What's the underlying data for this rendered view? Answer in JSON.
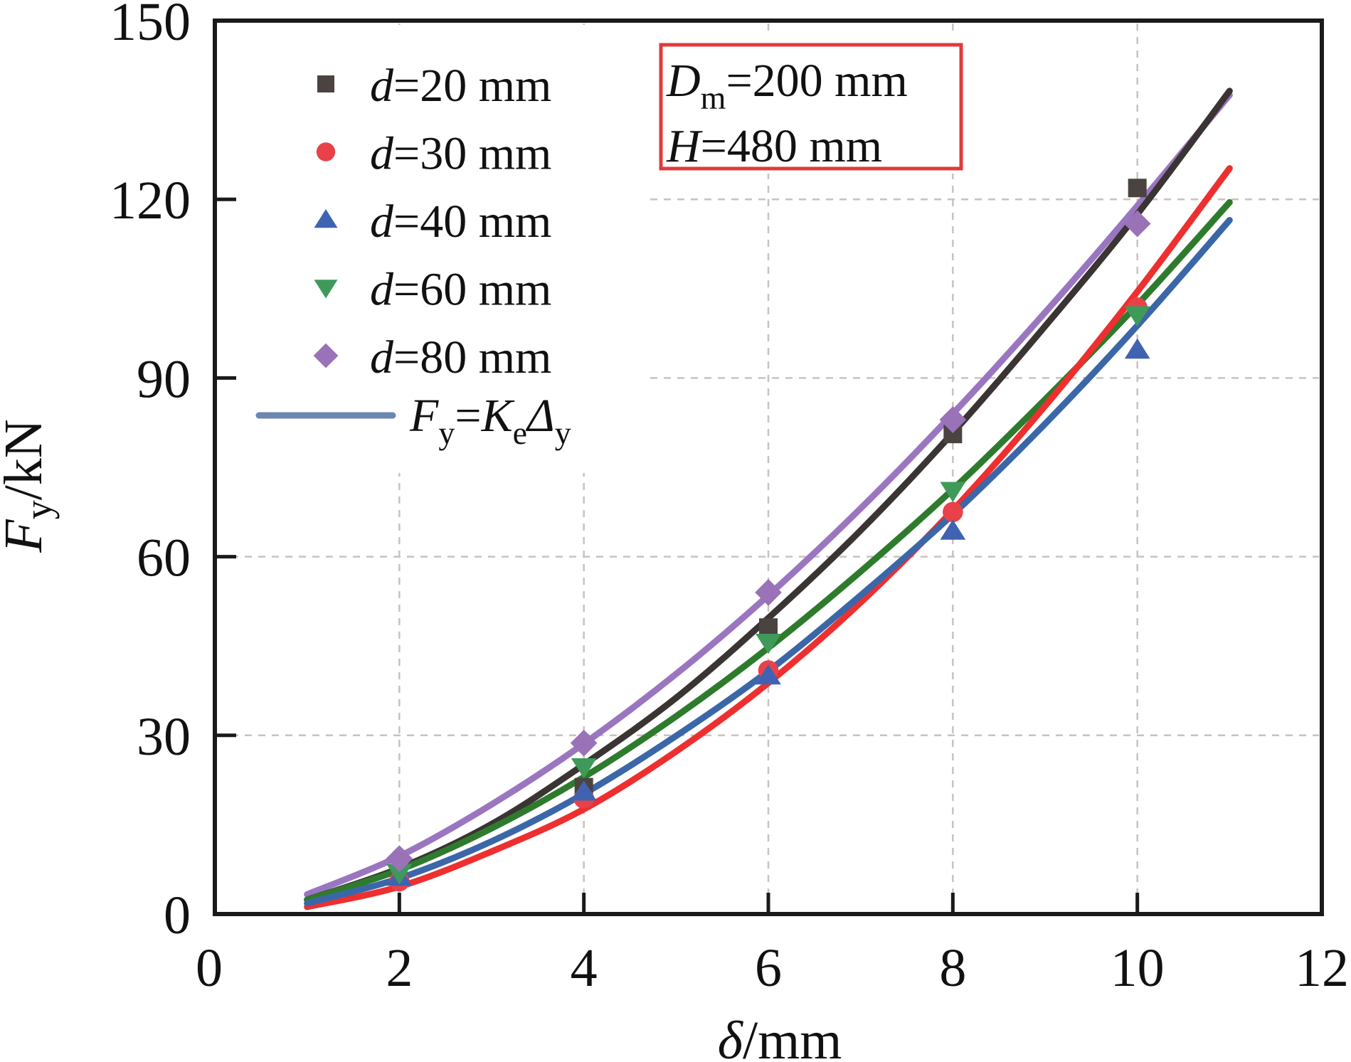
{
  "chart_data": {
    "type": "scatter",
    "title": "",
    "xlabel": {
      "symbol": "δ",
      "unit": "/mm"
    },
    "ylabel": {
      "symbol": "F",
      "sub": "y",
      "unit": "/kN"
    },
    "xlim": [
      0,
      12
    ],
    "ylim": [
      0,
      150
    ],
    "xticks": [
      0,
      2,
      4,
      6,
      8,
      10,
      12
    ],
    "yticks": [
      0,
      30,
      60,
      90,
      120,
      150
    ],
    "xtick_labels": [
      "0",
      "2",
      "4",
      "6",
      "8",
      "10",
      "12"
    ],
    "ytick_labels": [
      "0",
      "30",
      "60",
      "90",
      "120",
      "150"
    ],
    "grid": true,
    "legend_position": "top-left",
    "series": [
      {
        "name": "d=20 mm",
        "label_var": "d",
        "label_rest": "=20 mm",
        "marker": "square",
        "color": "#4a4340",
        "line_color": "#3a3433",
        "x": [
          4,
          6,
          8,
          10
        ],
        "y": [
          21.3,
          48.1,
          80.6,
          121.9
        ],
        "fit_x": [
          1,
          2,
          3,
          4,
          5,
          6,
          7,
          8,
          9,
          10,
          11
        ],
        "fit_y": [
          2.4,
          7.7,
          15.1,
          25.1,
          36.3,
          49.7,
          64.4,
          80.8,
          98.7,
          117.5,
          138.2
        ]
      },
      {
        "name": "d=30 mm",
        "label_var": "d",
        "label_rest": "=30 mm",
        "marker": "circle",
        "color": "#e8414a",
        "line_color": "#ee2f2f",
        "x": [
          2,
          4,
          6,
          8,
          10
        ],
        "y": [
          5.5,
          19.4,
          40.9,
          67.5,
          101.8
        ],
        "fit_x": [
          1,
          2,
          3,
          4,
          5,
          6,
          7,
          8,
          9,
          10,
          11
        ],
        "fit_y": [
          1.2,
          4.6,
          10.5,
          17.6,
          27.3,
          38.8,
          52.3,
          67.8,
          85.3,
          104.5,
          125.2
        ]
      },
      {
        "name": "d=40 mm",
        "label_var": "d",
        "label_rest": "=40 mm",
        "marker": "triangle-up",
        "color": "#3f63b0",
        "line_color": "#3b67a8",
        "x": [
          2,
          4,
          6,
          8,
          10
        ],
        "y": [
          6.2,
          20.5,
          40.0,
          64.3,
          94.7
        ],
        "fit_x": [
          1,
          2,
          3,
          4,
          5,
          6,
          7,
          8,
          9,
          10,
          11
        ],
        "fit_y": [
          1.8,
          6.0,
          12.2,
          20.2,
          29.9,
          40.8,
          53.5,
          67.1,
          82.3,
          98.8,
          116.5
        ]
      },
      {
        "name": "d=60 mm",
        "label_var": "d",
        "label_rest": "=60 mm",
        "marker": "triangle-down",
        "color": "#3f9a5a",
        "line_color": "#2e7b2e",
        "x": [
          2,
          4,
          6,
          8,
          10
        ],
        "y": [
          6.9,
          24.7,
          45.6,
          71.1,
          100.6
        ],
        "fit_x": [
          1,
          2,
          3,
          4,
          5,
          6,
          7,
          8,
          9,
          10,
          11
        ],
        "fit_y": [
          2.4,
          7.4,
          14.4,
          23.0,
          33.2,
          44.7,
          57.5,
          71.3,
          86.4,
          102.3,
          119.5
        ]
      },
      {
        "name": "d=80 mm",
        "label_var": "d",
        "label_rest": "=80 mm",
        "marker": "diamond",
        "color": "#9a72b8",
        "line_color": "#9b76c0",
        "x": [
          2,
          4,
          6,
          8,
          10
        ],
        "y": [
          9.3,
          28.7,
          54.0,
          83.0,
          115.9
        ],
        "fit_x": [
          1,
          2,
          3,
          4,
          5,
          6,
          7,
          8,
          9,
          10,
          11
        ],
        "fit_y": [
          3.3,
          9.7,
          18.4,
          28.6,
          40.3,
          53.5,
          68.1,
          84.0,
          101.0,
          118.9,
          137.5
        ]
      }
    ],
    "fit_legend": {
      "color": "#6c87b0",
      "F": "F",
      "Fsub": "y",
      "eq": "=",
      "K": "K",
      "Ksub": "e",
      "D": "Δ",
      "Dsub": "y"
    },
    "annotation": {
      "border_color": "#e03a3a",
      "line1": {
        "var": "D",
        "sub": "m",
        "rest": "=200 mm"
      },
      "line2": {
        "var": "H",
        "rest": "=480 mm"
      }
    }
  }
}
